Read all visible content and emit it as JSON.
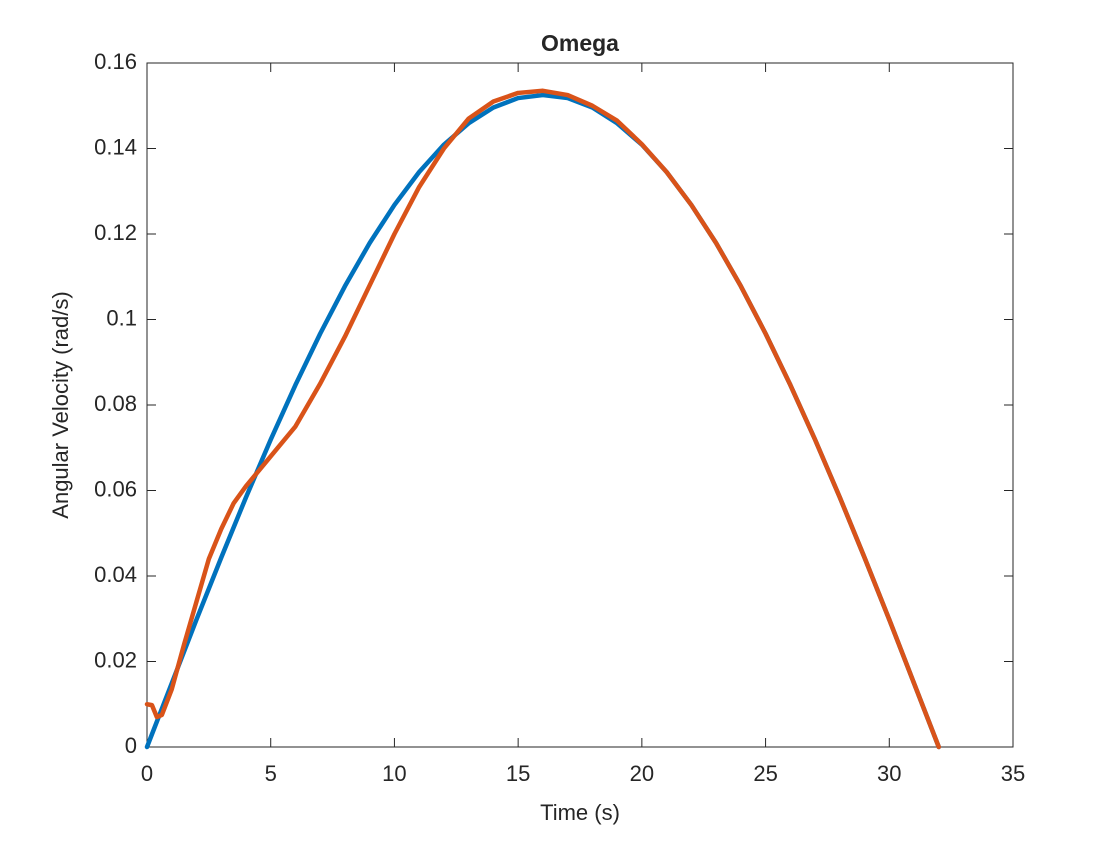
{
  "chart_data": {
    "type": "line",
    "title": "Omega",
    "x_label": "Time (s)",
    "y_label": "Angular Velocity (rad/s)",
    "xlim": [
      0,
      35
    ],
    "xticks": [
      0,
      5,
      10,
      15,
      20,
      25,
      30,
      35
    ],
    "ylim": [
      0,
      0.16
    ],
    "yticks": [
      0,
      0.02,
      0.04,
      0.06,
      0.08,
      0.1,
      0.12,
      0.14,
      0.16
    ],
    "series": [
      {
        "color": "#0072bd",
        "x": [
          0,
          1,
          2,
          3,
          4,
          5,
          6,
          7,
          8,
          9,
          10,
          11,
          12,
          13,
          14,
          15,
          16,
          17,
          18,
          19,
          20,
          21,
          22,
          23,
          24,
          25,
          26,
          27,
          28,
          29,
          30,
          31,
          32
        ],
        "values": [
          0,
          0.0149,
          0.0298,
          0.0443,
          0.0584,
          0.0719,
          0.0847,
          0.0967,
          0.1078,
          0.1179,
          0.1268,
          0.1345,
          0.1409,
          0.1459,
          0.1496,
          0.1518,
          0.1525,
          0.1518,
          0.1496,
          0.1459,
          0.1409,
          0.1345,
          0.1268,
          0.1179,
          0.1078,
          0.0967,
          0.0847,
          0.0719,
          0.0584,
          0.0443,
          0.0298,
          0.0149,
          0
        ]
      },
      {
        "color": "#d95319",
        "x": [
          0,
          0.2,
          0.4,
          0.6,
          1,
          1.5,
          2,
          2.5,
          3,
          3.5,
          4,
          5,
          6,
          7,
          8,
          9,
          10,
          11,
          12,
          13,
          14,
          15,
          16,
          17,
          18,
          19,
          20,
          21,
          22,
          23,
          24,
          25,
          26,
          27,
          28,
          29,
          30,
          31,
          32
        ],
        "values": [
          0.01,
          0.0098,
          0.007,
          0.0075,
          0.0135,
          0.024,
          0.034,
          0.044,
          0.051,
          0.057,
          0.061,
          0.068,
          0.075,
          0.085,
          0.096,
          0.108,
          0.12,
          0.131,
          0.14,
          0.147,
          0.151,
          0.153,
          0.1535,
          0.1525,
          0.15,
          0.1465,
          0.141,
          0.1345,
          0.1268,
          0.1179,
          0.1078,
          0.0967,
          0.0847,
          0.0719,
          0.0584,
          0.0443,
          0.0298,
          0.0149,
          0
        ]
      }
    ]
  }
}
